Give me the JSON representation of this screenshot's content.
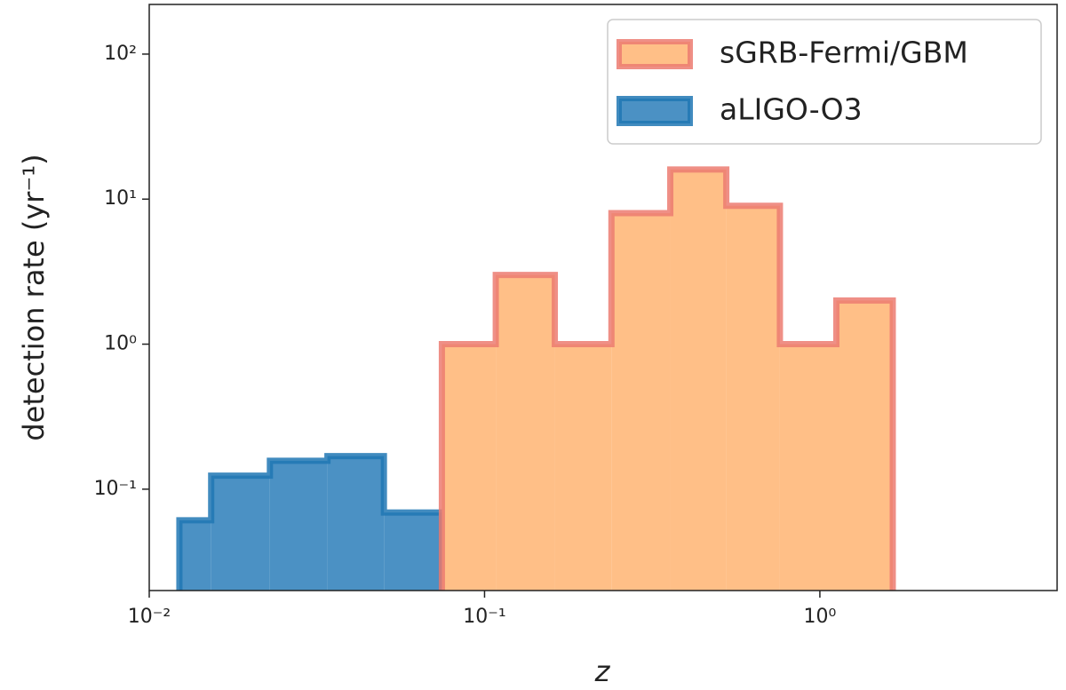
{
  "chart_data": {
    "type": "histogram",
    "xlabel": "z",
    "ylabel": "detection rate (yr⁻¹)",
    "xscale": "log",
    "yscale": "log",
    "xlim": [
      0.01,
      5.1
    ],
    "ylim": [
      0.02,
      220
    ],
    "xticks": [
      {
        "value": 0.01,
        "label": "10⁻²"
      },
      {
        "value": 0.1,
        "label": "10⁻¹"
      },
      {
        "value": 1,
        "label": "10⁰"
      }
    ],
    "yticks": [
      {
        "value": 0.1,
        "label": "10⁻¹"
      },
      {
        "value": 1,
        "label": "10⁰"
      },
      {
        "value": 10,
        "label": "10¹"
      },
      {
        "value": 100,
        "label": "10²"
      }
    ],
    "legend": "upper right",
    "series": [
      {
        "name": "sGRB-Fermi/GBM",
        "color": "#ffbf87",
        "edgecolor": "#ec7b71",
        "bins": [
          0.0746,
          0.108,
          0.162,
          0.239,
          0.358,
          0.526,
          0.76,
          1.12,
          1.65
        ],
        "values": [
          1,
          3,
          1,
          8,
          16,
          9,
          1,
          2
        ]
      },
      {
        "name": "aLIGO-O3",
        "color": "#4b91c4",
        "edgecolor": "#2077b4",
        "bins": [
          0.0123,
          0.0153,
          0.0229,
          0.034,
          0.0501,
          0.0746
        ],
        "values": [
          0.061,
          0.124,
          0.157,
          0.169,
          0.069
        ]
      }
    ]
  }
}
